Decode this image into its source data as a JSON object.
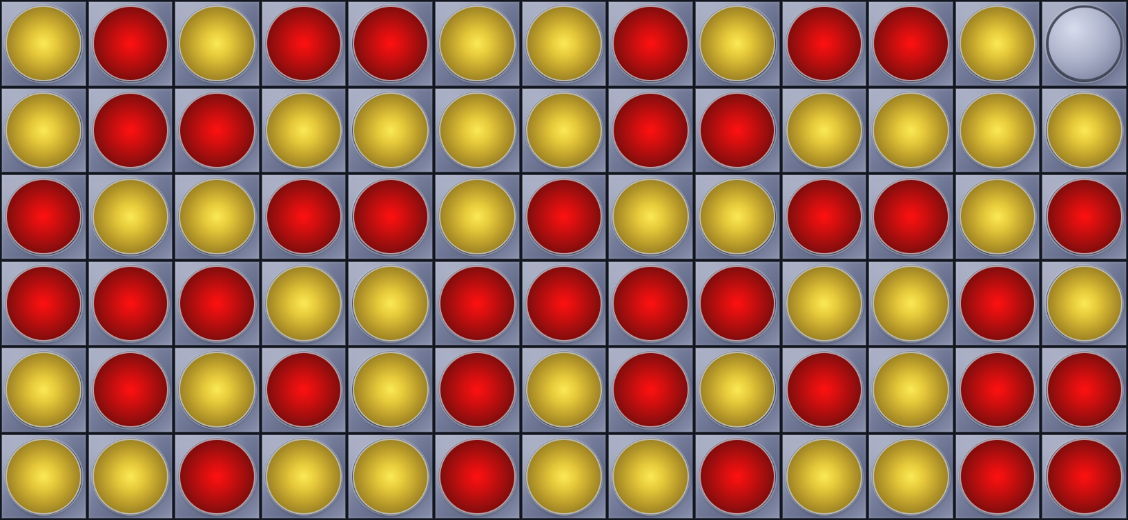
{
  "game": {
    "type": "connect-four-style",
    "rows": 6,
    "columns": 13,
    "colors": {
      "yellow": "#e6c93a",
      "red": "#d60f0f",
      "empty": "#aeb4cc",
      "cell": "#7c84a2"
    },
    "grid": [
      [
        "yellow",
        "red",
        "yellow",
        "red",
        "red",
        "yellow",
        "yellow",
        "red",
        "yellow",
        "red",
        "red",
        "yellow",
        "empty"
      ],
      [
        "yellow",
        "red",
        "red",
        "yellow",
        "yellow",
        "yellow",
        "yellow",
        "red",
        "red",
        "yellow",
        "yellow",
        "yellow",
        "yellow"
      ],
      [
        "red",
        "yellow",
        "yellow",
        "red",
        "red",
        "yellow",
        "red",
        "yellow",
        "yellow",
        "red",
        "red",
        "yellow",
        "red"
      ],
      [
        "red",
        "red",
        "red",
        "yellow",
        "yellow",
        "red",
        "red",
        "red",
        "red",
        "yellow",
        "yellow",
        "red",
        "yellow"
      ],
      [
        "yellow",
        "red",
        "yellow",
        "red",
        "yellow",
        "red",
        "yellow",
        "red",
        "yellow",
        "red",
        "yellow",
        "red",
        "red"
      ],
      [
        "yellow",
        "yellow",
        "red",
        "yellow",
        "yellow",
        "red",
        "yellow",
        "yellow",
        "red",
        "yellow",
        "yellow",
        "red",
        "red"
      ]
    ]
  }
}
